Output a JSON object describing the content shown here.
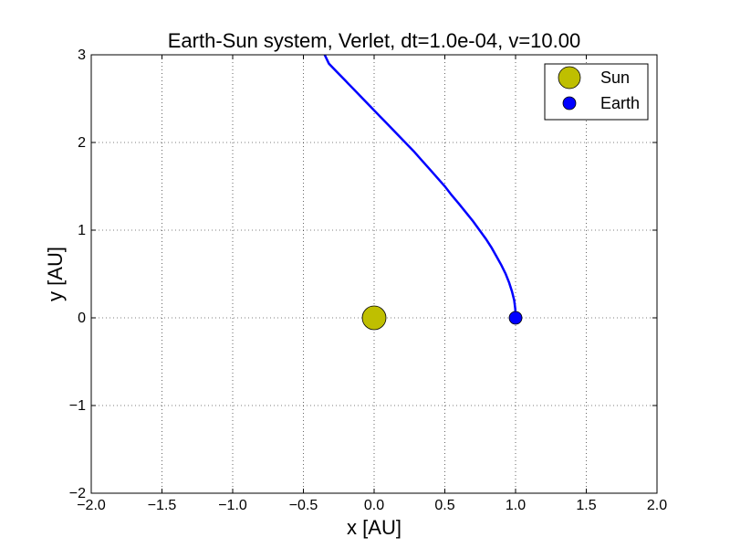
{
  "chart_data": {
    "type": "line",
    "title": "Earth-Sun system, Verlet, dt=1.0e-04, v=10.00",
    "xlabel": "x [AU]",
    "ylabel": "y [AU]",
    "xlim": [
      -2.0,
      2.0
    ],
    "ylim": [
      -2,
      3
    ],
    "xticks": [
      -2.0,
      -1.5,
      -1.0,
      -0.5,
      0.0,
      0.5,
      1.0,
      1.5,
      2.0
    ],
    "xtick_labels": [
      "−2.0",
      "−1.5",
      "−1.0",
      "−0.5",
      "0.0",
      "0.5",
      "1.0",
      "1.5",
      "2.0"
    ],
    "yticks": [
      -2,
      -1,
      0,
      1,
      2,
      3
    ],
    "ytick_labels": [
      "−2",
      "−1",
      "0",
      "1",
      "2",
      "3"
    ],
    "grid": true,
    "legend_position": "top-right",
    "series": [
      {
        "name": "",
        "kind": "line",
        "color": "#0000ff",
        "points": [
          [
            1.0,
            0.0
          ],
          [
            0.998,
            0.1
          ],
          [
            0.99,
            0.2
          ],
          [
            0.975,
            0.3
          ],
          [
            0.955,
            0.4
          ],
          [
            0.93,
            0.5
          ],
          [
            0.9,
            0.6
          ],
          [
            0.865,
            0.7
          ],
          [
            0.83,
            0.8
          ],
          [
            0.79,
            0.9
          ],
          [
            0.745,
            1.0
          ],
          [
            0.7,
            1.1
          ],
          [
            0.65,
            1.2
          ],
          [
            0.6,
            1.3
          ],
          [
            0.548,
            1.4
          ],
          [
            0.5,
            1.5
          ],
          [
            0.445,
            1.6
          ],
          [
            0.39,
            1.7
          ],
          [
            0.335,
            1.8
          ],
          [
            0.28,
            1.9
          ],
          [
            0.22,
            2.0
          ],
          [
            0.16,
            2.1
          ],
          [
            0.1,
            2.2
          ],
          [
            0.04,
            2.3
          ],
          [
            -0.02,
            2.4
          ],
          [
            -0.08,
            2.5
          ],
          [
            -0.14,
            2.6
          ],
          [
            -0.2,
            2.7
          ],
          [
            -0.26,
            2.8
          ],
          [
            -0.32,
            2.9
          ],
          [
            -0.35,
            3.0
          ]
        ]
      },
      {
        "name": "Sun",
        "kind": "marker",
        "color": "#bfbf00",
        "x": [
          0.0
        ],
        "y": [
          0.0
        ]
      },
      {
        "name": "Earth",
        "kind": "marker",
        "color": "#0000ff",
        "x": [
          1.0
        ],
        "y": [
          0.0
        ]
      }
    ]
  }
}
